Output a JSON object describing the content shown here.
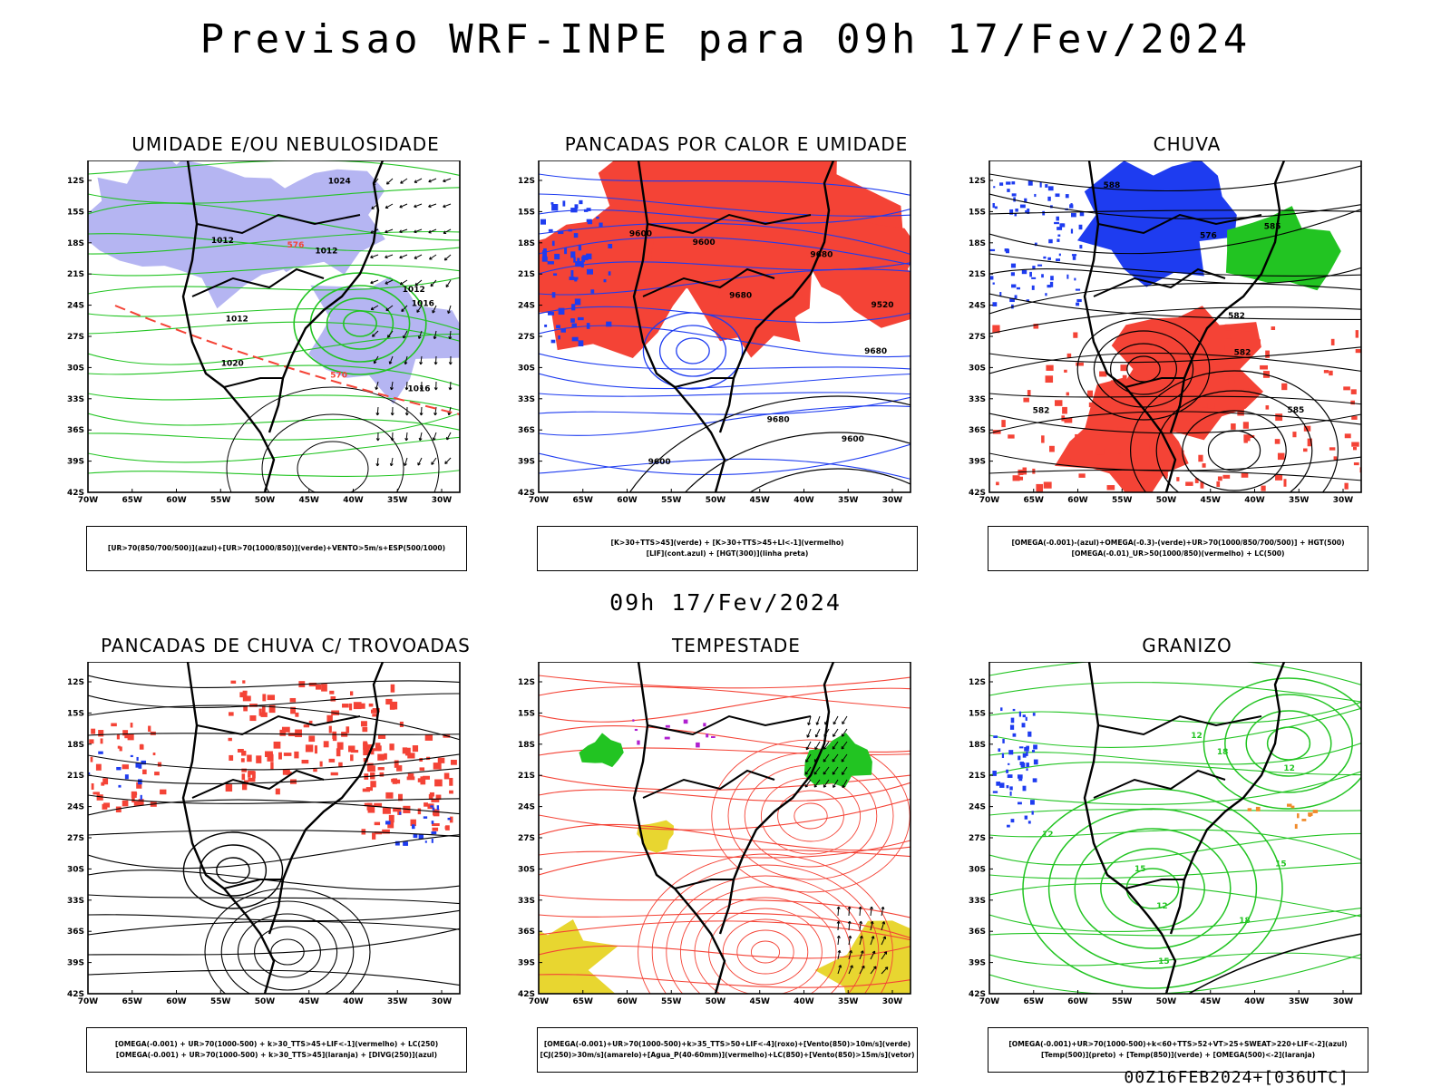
{
  "title": "Previsao WRF-INPE  para 09h 17/Fev/2024",
  "subtitle": "09h 17/Fev/2024",
  "footer": "00Z16FEB2024+[036UTC]",
  "axes": {
    "lat_labels": [
      "12S",
      "15S",
      "18S",
      "21S",
      "24S",
      "27S",
      "30S",
      "33S",
      "36S",
      "39S",
      "42S"
    ],
    "lon_labels": [
      "70W",
      "65W",
      "60W",
      "55W",
      "50W",
      "45W",
      "40W",
      "35W",
      "30W"
    ]
  },
  "colors": {
    "red": "#f44336",
    "green": "#22c422",
    "blue": "#1e3cf0",
    "lavender": "#b5b5f2",
    "yellow": "#e8d630",
    "orange": "#f08a2a",
    "purple": "#b020d0"
  },
  "panels": [
    {
      "title": "UMIDADE E/OU NEBULOSIDADE",
      "legend": [
        "[UR>70(850/700/500)](azul)+[UR>70(1000/850)](verde)+VENTO>5m/s+ESP(500/1000)"
      ],
      "labels": [
        "1012",
        "1012",
        "1012",
        "1016",
        "1012",
        "1016",
        "1020",
        "1024",
        "576",
        "570"
      ]
    },
    {
      "title": "PANCADAS POR CALOR E UMIDADE",
      "legend": [
        "[K>30+TTS>45](verde) + [K>30+TTS>45+LI<-1](vermelho)",
        "[LIF](cont.azul) + [HGT(300)](linha preta)"
      ],
      "labels": [
        "9680",
        "9680",
        "9680",
        "9600",
        "9600",
        "9600",
        "9680",
        "9600",
        "9520"
      ]
    },
    {
      "title": "CHUVA",
      "legend": [
        "[OMEGA(-0.001)-(azul)+OMEGA(-0.3)-(verde)+UR>70(1000/850/700/500)] + HGT(500)",
        "[OMEGA(-0.01)_UR>50(1000/850)(vermelho) + LC(500)"
      ],
      "labels": [
        "582",
        "582",
        "576",
        "582",
        "585",
        "585",
        "588"
      ]
    },
    {
      "title": "PANCADAS DE CHUVA C/ TROVOADAS",
      "legend": [
        "[OMEGA(-0.001) + UR>70(1000-500) + k>30_TTS>45+LIF<-1](vermelho) + LC(250)",
        "[OMEGA(-0.001) + UR>70(1000-500) + k>30_TTS>45](laranja) + [DIVG(250)](azul)"
      ],
      "labels": []
    },
    {
      "title": "TEMPESTADE",
      "legend": [
        "[OMEGA(-0.001)+UR>70(1000-500)+k>35_TTS>50+LIF<-4](roxo)+[Vento(850)>10m/s](verde)",
        "[CJ(250)>30m/s](amarelo)+[Agua_P(40-60mm)](vermelho)+LC(850)+[Vento(850)>15m/s](vetor)"
      ],
      "labels": []
    },
    {
      "title": "GRANIZO",
      "legend": [
        "[OMEGA(-0.001)+UR>70(1000-500)+k<60+TTS>52+VT>25+SWEAT>220+LIF<-2](azul)",
        "[Temp(500)](preto) + [Temp(850)](verde) + [OMEGA(500)<-2](laranja)"
      ],
      "labels": [
        "12",
        "15",
        "15",
        "18",
        "12",
        "18",
        "12",
        "15",
        "12"
      ]
    }
  ]
}
